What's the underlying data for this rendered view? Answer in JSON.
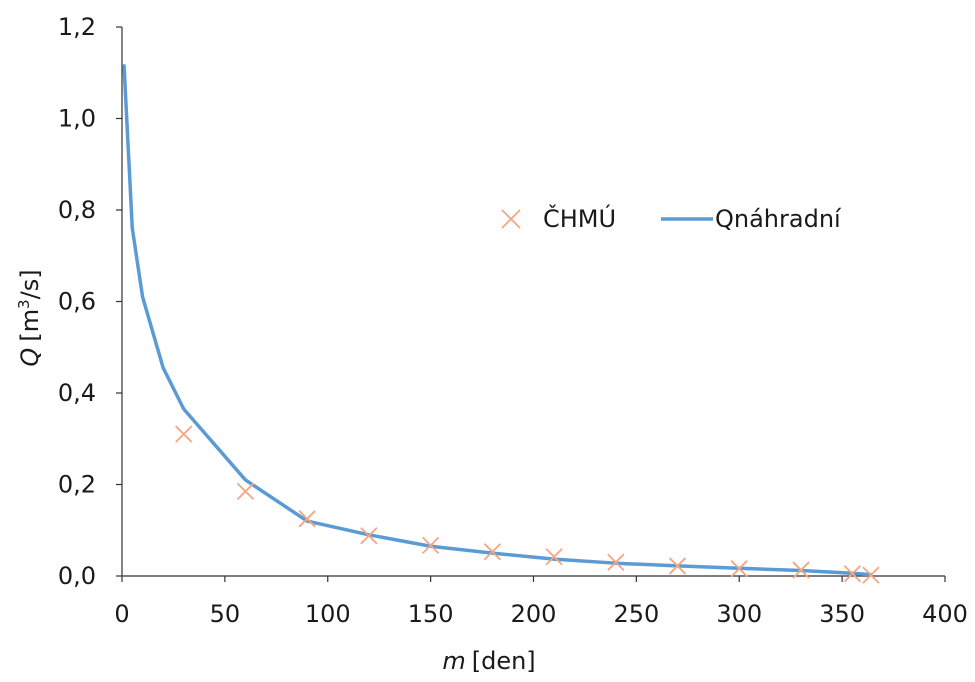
{
  "chart_data": {
    "type": "scatter",
    "xlabel_var": "m",
    "xlabel_unit": "[den]",
    "ylabel_var": "Q",
    "ylabel_unit_pre": "[m",
    "ylabel_unit_sup": "3",
    "ylabel_unit_post": "/s]",
    "xlim": [
      0,
      400
    ],
    "ylim": [
      0,
      1.2
    ],
    "x_ticks": [
      "0",
      "50",
      "100",
      "150",
      "200",
      "250",
      "300",
      "350",
      "400"
    ],
    "y_ticks": [
      "0,0",
      "0,2",
      "0,4",
      "0,6",
      "0,8",
      "1,0",
      "1,2"
    ],
    "grid": false,
    "legend_position": "center-right",
    "series": [
      {
        "name": "ČHMÚ",
        "kind": "markers",
        "marker": "x",
        "color": "#f4a582",
        "x": [
          30,
          60,
          90,
          120,
          150,
          180,
          210,
          240,
          270,
          300,
          330,
          355,
          364
        ],
        "y": [
          0.31,
          0.185,
          0.125,
          0.088,
          0.067,
          0.053,
          0.042,
          0.03,
          0.022,
          0.016,
          0.013,
          0.005,
          0.002
        ]
      },
      {
        "name": "Qnáhradní",
        "kind": "line",
        "color": "#5b9bd5",
        "x": [
          1,
          5,
          10,
          20,
          30,
          60,
          90,
          120,
          150,
          180,
          210,
          240,
          270,
          300,
          330,
          355,
          364
        ],
        "y": [
          1.115,
          0.76,
          0.61,
          0.455,
          0.365,
          0.21,
          0.12,
          0.09,
          0.065,
          0.05,
          0.037,
          0.028,
          0.022,
          0.017,
          0.012,
          0.006,
          0.003
        ]
      }
    ]
  }
}
